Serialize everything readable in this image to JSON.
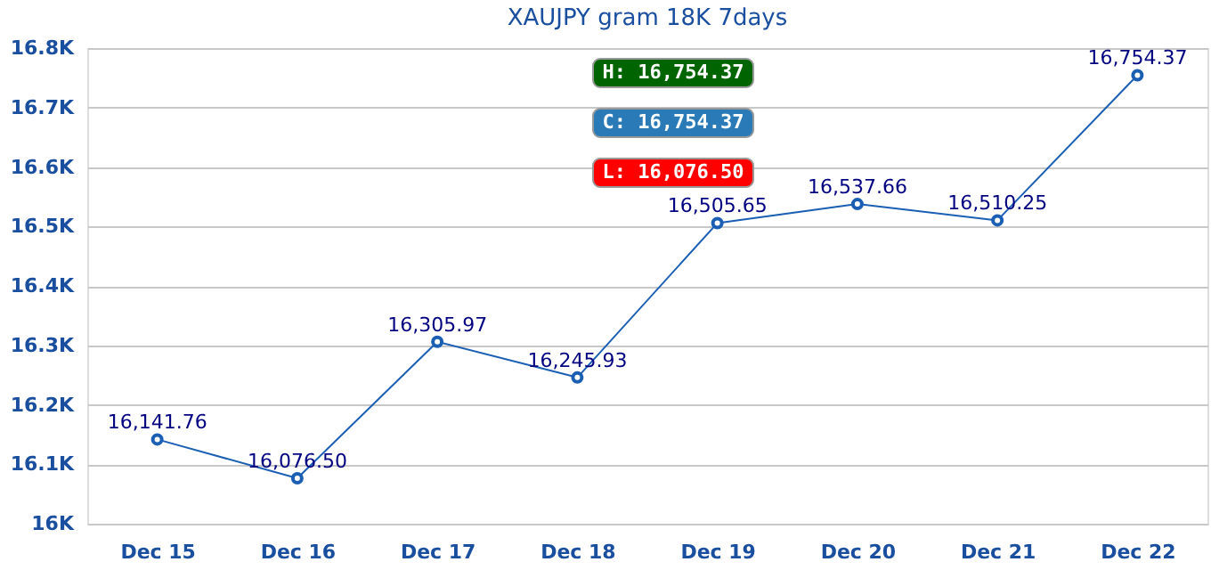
{
  "chart_data": {
    "type": "line",
    "title": "XAUJPY gram 18K 7days",
    "categories": [
      "Dec 15",
      "Dec 16",
      "Dec 17",
      "Dec 18",
      "Dec 19",
      "Dec 20",
      "Dec 21",
      "Dec 22"
    ],
    "series": [
      {
        "color": "#1a5fb4",
        "values": [
          16141.76,
          16076.5,
          16305.97,
          16245.93,
          16505.65,
          16537.66,
          16510.25,
          16754.37
        ],
        "value_labels": [
          "16,141.76",
          "16,076.50",
          "16,305.97",
          "16,245.93",
          "16,505.65",
          "16,537.66",
          "16,510.25",
          "16,754.37"
        ]
      }
    ],
    "ylim": [
      16000,
      16800
    ],
    "yticks": [
      {
        "value": 16000,
        "label": "16K"
      },
      {
        "value": 16100,
        "label": "16.1K"
      },
      {
        "value": 16200,
        "label": "16.2K"
      },
      {
        "value": 16300,
        "label": "16.3K"
      },
      {
        "value": 16400,
        "label": "16.4K"
      },
      {
        "value": 16500,
        "label": "16.5K"
      },
      {
        "value": 16600,
        "label": "16.6K"
      },
      {
        "value": 16700,
        "label": "16.7K"
      },
      {
        "value": 16800,
        "label": "16.8K"
      }
    ],
    "grid": "y",
    "marker": "circle",
    "line_style": "solid",
    "annotations": [
      "H: 16,754.37",
      "C: 16,754.37",
      "L: 16,076.50"
    ]
  }
}
